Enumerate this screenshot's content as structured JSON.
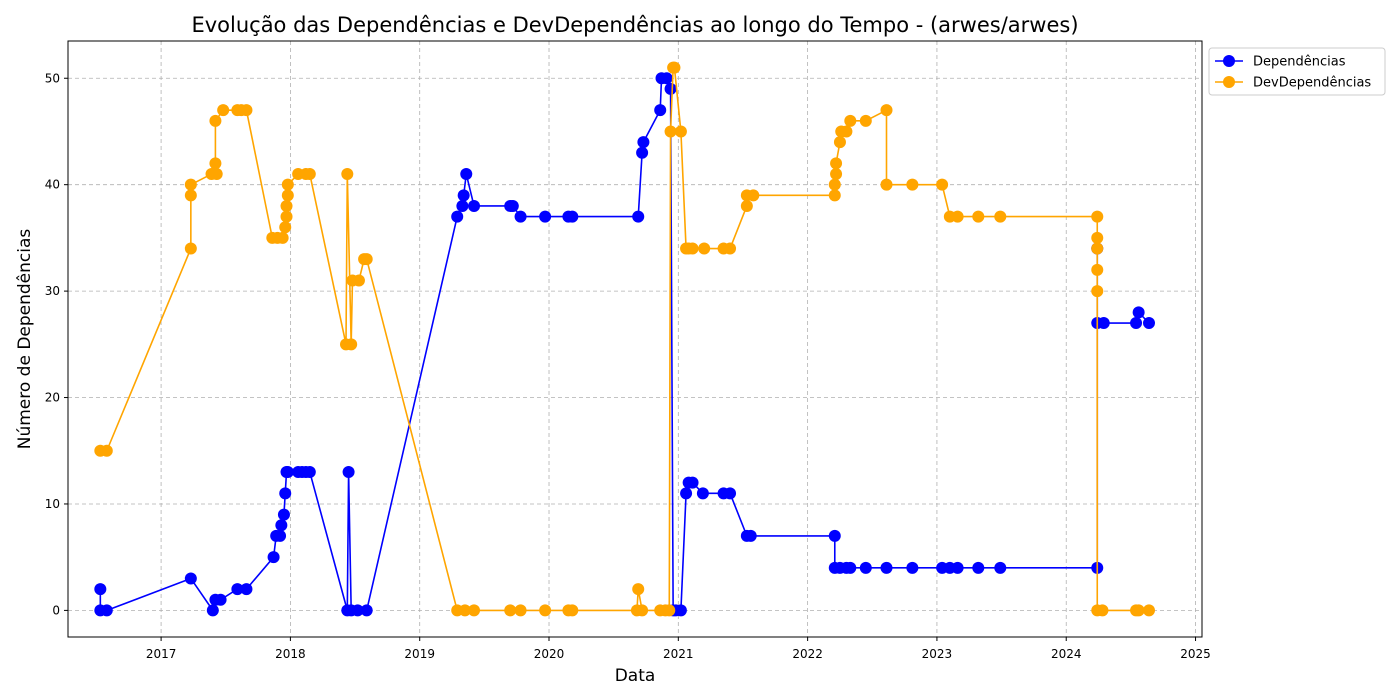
{
  "chart_data": {
    "type": "line",
    "title": "Evolução das Dependências e DevDependências ao longo do Tempo - (arwes/arwes)",
    "xlabel": "Data",
    "ylabel": "Número de Dependências",
    "xlim": [
      2016.28,
      2025.05
    ],
    "ylim": [
      -2.5,
      53.5
    ],
    "x_ticks": [
      2017,
      2018,
      2019,
      2020,
      2021,
      2022,
      2023,
      2024,
      2025
    ],
    "y_ticks": [
      0,
      10,
      20,
      30,
      40,
      50
    ],
    "grid": true,
    "legend_position": "outside-top-right",
    "series": [
      {
        "name": "Dependências",
        "color": "#0000ff",
        "points": [
          [
            2016.53,
            2
          ],
          [
            2016.53,
            0
          ],
          [
            2016.58,
            0
          ],
          [
            2017.23,
            3
          ],
          [
            2017.4,
            0
          ],
          [
            2017.42,
            1
          ],
          [
            2017.46,
            1
          ],
          [
            2017.59,
            2
          ],
          [
            2017.66,
            2
          ],
          [
            2017.87,
            5
          ],
          [
            2017.89,
            7
          ],
          [
            2017.92,
            7
          ],
          [
            2017.93,
            8
          ],
          [
            2017.95,
            9
          ],
          [
            2017.96,
            11
          ],
          [
            2017.97,
            13
          ],
          [
            2017.98,
            13
          ],
          [
            2018.06,
            13
          ],
          [
            2018.09,
            13
          ],
          [
            2018.12,
            13
          ],
          [
            2018.15,
            13
          ],
          [
            2018.44,
            0
          ],
          [
            2018.45,
            13
          ],
          [
            2018.47,
            0
          ],
          [
            2018.52,
            0
          ],
          [
            2018.59,
            0
          ],
          [
            2019.29,
            37
          ],
          [
            2019.33,
            38
          ],
          [
            2019.34,
            39
          ],
          [
            2019.36,
            41
          ],
          [
            2019.42,
            38
          ],
          [
            2019.7,
            38
          ],
          [
            2019.72,
            38
          ],
          [
            2019.78,
            37
          ],
          [
            2019.97,
            37
          ],
          [
            2020.15,
            37
          ],
          [
            2020.18,
            37
          ],
          [
            2020.69,
            37
          ],
          [
            2020.72,
            43
          ],
          [
            2020.73,
            44
          ],
          [
            2020.86,
            47
          ],
          [
            2020.87,
            50
          ],
          [
            2020.91,
            50
          ],
          [
            2020.94,
            49
          ],
          [
            2020.96,
            0
          ],
          [
            2020.98,
            0
          ],
          [
            2021.02,
            0
          ],
          [
            2021.06,
            11
          ],
          [
            2021.08,
            12
          ],
          [
            2021.11,
            12
          ],
          [
            2021.19,
            11
          ],
          [
            2021.35,
            11
          ],
          [
            2021.4,
            11
          ],
          [
            2021.53,
            7
          ],
          [
            2021.56,
            7
          ],
          [
            2022.21,
            7
          ],
          [
            2022.21,
            4
          ],
          [
            2022.25,
            4
          ],
          [
            2022.3,
            4
          ],
          [
            2022.33,
            4
          ],
          [
            2022.45,
            4
          ],
          [
            2022.61,
            4
          ],
          [
            2022.81,
            4
          ],
          [
            2023.04,
            4
          ],
          [
            2023.1,
            4
          ],
          [
            2023.16,
            4
          ],
          [
            2023.32,
            4
          ],
          [
            2023.49,
            4
          ],
          [
            2024.24,
            4
          ],
          [
            2024.24,
            34
          ],
          [
            2024.24,
            27
          ],
          [
            2024.29,
            27
          ],
          [
            2024.54,
            27
          ],
          [
            2024.56,
            28
          ],
          [
            2024.64,
            27
          ]
        ]
      },
      {
        "name": "DevDependências",
        "color": "#ffa500",
        "points": [
          [
            2016.53,
            15
          ],
          [
            2016.58,
            15
          ],
          [
            2017.23,
            34
          ],
          [
            2017.23,
            39
          ],
          [
            2017.23,
            40
          ],
          [
            2017.39,
            41
          ],
          [
            2017.43,
            41
          ],
          [
            2017.42,
            42
          ],
          [
            2017.42,
            46
          ],
          [
            2017.48,
            47
          ],
          [
            2017.59,
            47
          ],
          [
            2017.62,
            47
          ],
          [
            2017.66,
            47
          ],
          [
            2017.86,
            35
          ],
          [
            2017.9,
            35
          ],
          [
            2017.94,
            35
          ],
          [
            2017.96,
            36
          ],
          [
            2017.97,
            37
          ],
          [
            2017.97,
            38
          ],
          [
            2017.98,
            39
          ],
          [
            2017.98,
            40
          ],
          [
            2018.06,
            41
          ],
          [
            2018.12,
            41
          ],
          [
            2018.15,
            41
          ],
          [
            2018.43,
            25
          ],
          [
            2018.44,
            41
          ],
          [
            2018.47,
            25
          ],
          [
            2018.48,
            31
          ],
          [
            2018.53,
            31
          ],
          [
            2018.57,
            33
          ],
          [
            2018.59,
            33
          ],
          [
            2019.29,
            0
          ],
          [
            2019.35,
            0
          ],
          [
            2019.42,
            0
          ],
          [
            2019.7,
            0
          ],
          [
            2019.78,
            0
          ],
          [
            2019.97,
            0
          ],
          [
            2020.15,
            0
          ],
          [
            2020.18,
            0
          ],
          [
            2020.68,
            0
          ],
          [
            2020.69,
            2
          ],
          [
            2020.72,
            0
          ],
          [
            2020.86,
            0
          ],
          [
            2020.9,
            0
          ],
          [
            2020.93,
            0
          ],
          [
            2020.94,
            45
          ],
          [
            2020.96,
            51
          ],
          [
            2020.97,
            51
          ],
          [
            2021.02,
            45
          ],
          [
            2021.06,
            34
          ],
          [
            2021.08,
            34
          ],
          [
            2021.11,
            34
          ],
          [
            2021.2,
            34
          ],
          [
            2021.35,
            34
          ],
          [
            2021.4,
            34
          ],
          [
            2021.53,
            38
          ],
          [
            2021.53,
            39
          ],
          [
            2021.58,
            39
          ],
          [
            2022.21,
            39
          ],
          [
            2022.21,
            40
          ],
          [
            2022.22,
            41
          ],
          [
            2022.22,
            42
          ],
          [
            2022.25,
            44
          ],
          [
            2022.26,
            45
          ],
          [
            2022.3,
            45
          ],
          [
            2022.33,
            46
          ],
          [
            2022.45,
            46
          ],
          [
            2022.61,
            47
          ],
          [
            2022.61,
            40
          ],
          [
            2022.81,
            40
          ],
          [
            2023.04,
            40
          ],
          [
            2023.1,
            37
          ],
          [
            2023.16,
            37
          ],
          [
            2023.32,
            37
          ],
          [
            2023.49,
            37
          ],
          [
            2024.24,
            37
          ],
          [
            2024.24,
            35
          ],
          [
            2024.24,
            34
          ],
          [
            2024.24,
            32
          ],
          [
            2024.24,
            30
          ],
          [
            2024.24,
            0
          ],
          [
            2024.28,
            0
          ],
          [
            2024.54,
            0
          ],
          [
            2024.56,
            0
          ],
          [
            2024.64,
            0
          ]
        ]
      }
    ]
  }
}
